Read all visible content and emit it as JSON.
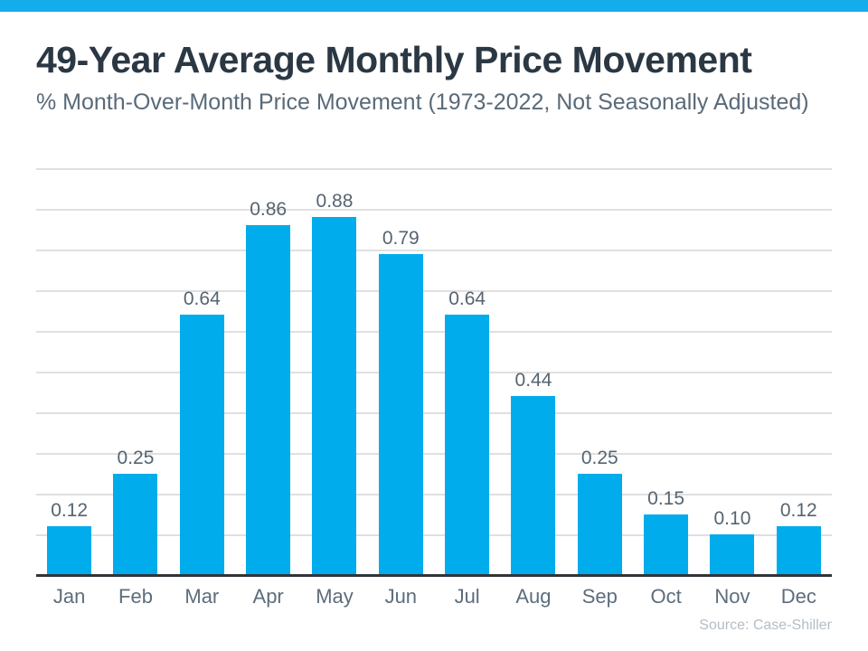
{
  "page": {
    "accent_color": "#15acec"
  },
  "header": {
    "title": "49-Year Average Monthly Price Movement",
    "subtitle": "% Month-Over-Month Price Movement (1973-2022, Not Seasonally Adjusted)"
  },
  "chart_data": {
    "type": "bar",
    "title": "49-Year Average Monthly Price Movement",
    "subtitle": "% Month-Over-Month Price Movement (1973-2022, Not Seasonally Adjusted)",
    "categories": [
      "Jan",
      "Feb",
      "Mar",
      "Apr",
      "May",
      "Jun",
      "Jul",
      "Aug",
      "Sep",
      "Oct",
      "Nov",
      "Dec"
    ],
    "values": [
      0.12,
      0.25,
      0.64,
      0.86,
      0.88,
      0.79,
      0.64,
      0.44,
      0.25,
      0.15,
      0.1,
      0.12
    ],
    "value_labels": [
      "0.12",
      "0.25",
      "0.64",
      "0.86",
      "0.88",
      "0.79",
      "0.64",
      "0.44",
      "0.25",
      "0.15",
      "0.10",
      "0.12"
    ],
    "xlabel": "",
    "ylabel": "",
    "ylim": [
      0,
      1.0
    ],
    "gridline_step": 0.1,
    "grid": true,
    "legend": false,
    "data_labels_shown": true,
    "y_tick_labels_shown": false,
    "bar_color": "#00acec",
    "gridline_color": "#e0e0e0",
    "axis_color": "#30353a"
  },
  "footer": {
    "source": "Source: Case-Shiller"
  }
}
